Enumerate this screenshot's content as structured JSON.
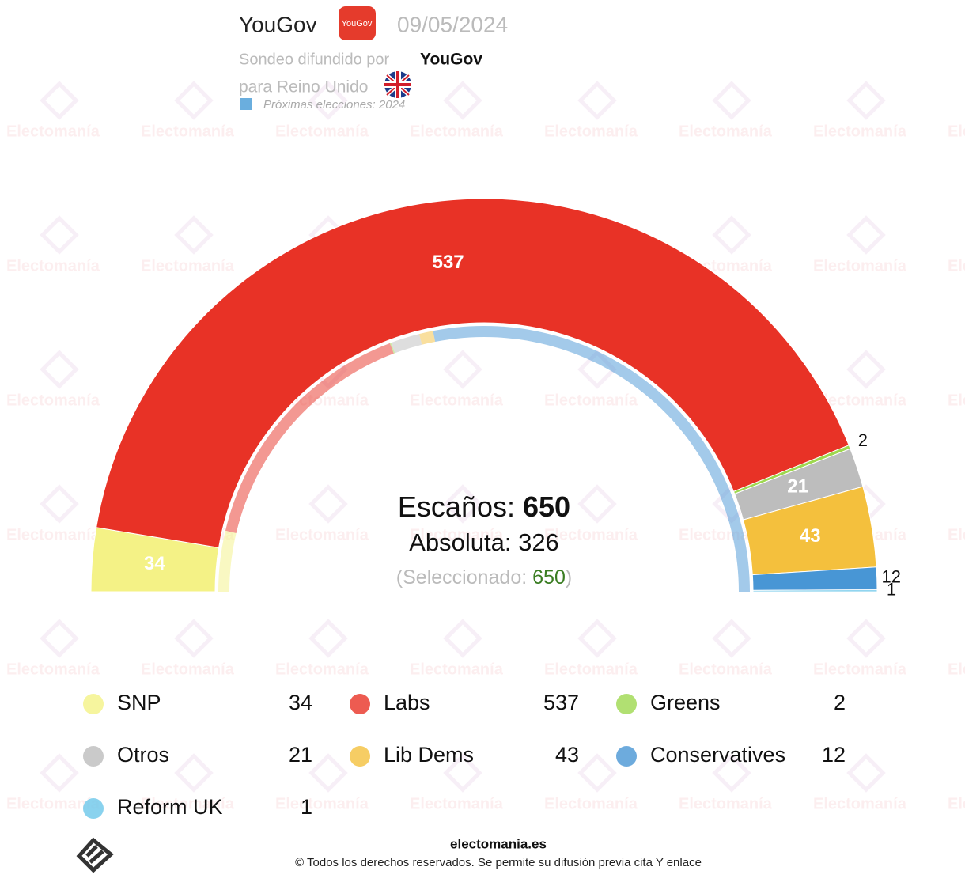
{
  "header": {
    "pollster": "YouGov",
    "logo_text": "YouGov",
    "date": "09/05/2024",
    "released_by_label": "Sondeo difundido por",
    "released_by": "YouGov",
    "region": "para Reino Unido",
    "next_election": "Próximas elecciones: 2024"
  },
  "watermark": "Electomanía",
  "chart_data": {
    "type": "hemicycle",
    "series": [
      {
        "name": "SNP",
        "color": "#f4f286",
        "value": 34,
        "previous": 48
      },
      {
        "name": "Labs",
        "color": "#e83226",
        "value": 537,
        "previous": 202
      },
      {
        "name": "Greens",
        "color": "#9ed84f",
        "value": 2,
        "previous": 1
      },
      {
        "name": "Otros",
        "color": "#bdbdbd",
        "value": 21,
        "previous": 23
      },
      {
        "name": "Lib Dems",
        "color": "#f4c03d",
        "value": 43,
        "previous": 11
      },
      {
        "name": "Conservatives",
        "color": "#4896d5",
        "value": 12,
        "previous": 365
      },
      {
        "name": "Reform UK",
        "color": "#6cc7ea",
        "value": 1,
        "previous": 0
      }
    ],
    "seats_label": "Escaños:",
    "seats": 650,
    "majority_label": "Absoluta:",
    "majority": 326,
    "selected_label": "(Seleccionado:",
    "selected": 650,
    "selected_close": ")"
  },
  "footer": {
    "site": "electomania.es",
    "copyright": "© Todos los derechos reservados. Se permite su difusión previa cita Y enlace"
  }
}
